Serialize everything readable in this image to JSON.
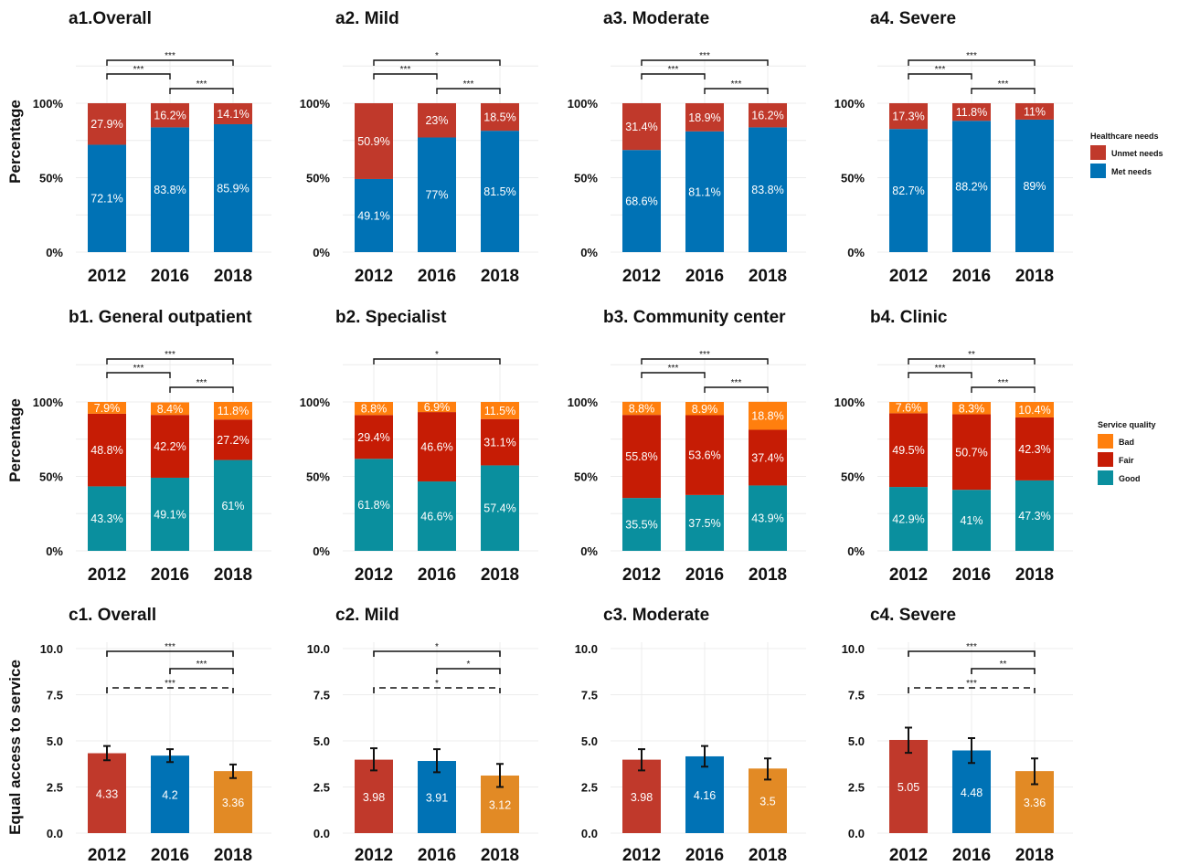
{
  "colors": {
    "unmet": "#c0392b",
    "met": "#0072b5",
    "bad": "#ff7f0e",
    "fair": "#c61c05",
    "good": "#0a8f9e",
    "y2012": "#c0392b",
    "y2016": "#0072b5",
    "y2018": "#e28a25"
  },
  "chart_data": [
    {
      "id": "a1",
      "type": "bar",
      "stacked": true,
      "title": "a1.Overall",
      "ylabel": "Percentage",
      "categories": [
        "2012",
        "2016",
        "2018"
      ],
      "yticks": [
        "0%",
        "50%",
        "100%"
      ],
      "series": [
        {
          "name": "Met needs",
          "values": [
            72.1,
            83.8,
            85.9
          ],
          "labels": [
            "72.1%",
            "83.8%",
            "85.9%"
          ]
        },
        {
          "name": "Unmet needs",
          "values": [
            27.9,
            16.2,
            14.1
          ],
          "labels": [
            "27.9%",
            "16.2%",
            "14.1%"
          ]
        }
      ],
      "significance": [
        {
          "from": 0,
          "to": 2,
          "label": "***",
          "level": 3,
          "dashed": false
        },
        {
          "from": 0,
          "to": 1,
          "label": "***",
          "level": 2,
          "dashed": false
        },
        {
          "from": 1,
          "to": 2,
          "label": "***",
          "level": 1,
          "dashed": false
        }
      ]
    },
    {
      "id": "a2",
      "type": "bar",
      "stacked": true,
      "title": "a2. Mild",
      "ylabel": "",
      "categories": [
        "2012",
        "2016",
        "2018"
      ],
      "yticks": [
        "0%",
        "50%",
        "100%"
      ],
      "series": [
        {
          "name": "Met needs",
          "values": [
            49.1,
            77,
            81.5
          ],
          "labels": [
            "49.1%",
            "77%",
            "81.5%"
          ]
        },
        {
          "name": "Unmet needs",
          "values": [
            50.9,
            23,
            18.5
          ],
          "labels": [
            "50.9%",
            "23%",
            "18.5%"
          ]
        }
      ],
      "significance": [
        {
          "from": 0,
          "to": 2,
          "label": "*",
          "level": 3,
          "dashed": false
        },
        {
          "from": 0,
          "to": 1,
          "label": "***",
          "level": 2,
          "dashed": false
        },
        {
          "from": 1,
          "to": 2,
          "label": "***",
          "level": 1,
          "dashed": false
        }
      ]
    },
    {
      "id": "a3",
      "type": "bar",
      "stacked": true,
      "title": "a3. Moderate",
      "ylabel": "",
      "categories": [
        "2012",
        "2016",
        "2018"
      ],
      "yticks": [
        "0%",
        "50%",
        "100%"
      ],
      "series": [
        {
          "name": "Met needs",
          "values": [
            68.6,
            81.1,
            83.8
          ],
          "labels": [
            "68.6%",
            "81.1%",
            "83.8%"
          ]
        },
        {
          "name": "Unmet needs",
          "values": [
            31.4,
            18.9,
            16.2
          ],
          "labels": [
            "31.4%",
            "18.9%",
            "16.2%"
          ]
        }
      ],
      "significance": [
        {
          "from": 0,
          "to": 2,
          "label": "***",
          "level": 3,
          "dashed": false
        },
        {
          "from": 0,
          "to": 1,
          "label": "***",
          "level": 2,
          "dashed": false
        },
        {
          "from": 1,
          "to": 2,
          "label": "***",
          "level": 1,
          "dashed": false
        }
      ]
    },
    {
      "id": "a4",
      "type": "bar",
      "stacked": true,
      "title": "a4. Severe",
      "ylabel": "",
      "categories": [
        "2012",
        "2016",
        "2018"
      ],
      "yticks": [
        "0%",
        "50%",
        "100%"
      ],
      "series": [
        {
          "name": "Met needs",
          "values": [
            82.7,
            88.2,
            89
          ],
          "labels": [
            "82.7%",
            "88.2%",
            "89%"
          ]
        },
        {
          "name": "Unmet needs",
          "values": [
            17.3,
            11.8,
            11
          ],
          "labels": [
            "17.3%",
            "11.8%",
            "11%"
          ]
        }
      ],
      "significance": [
        {
          "from": 0,
          "to": 2,
          "label": "***",
          "level": 3,
          "dashed": false
        },
        {
          "from": 0,
          "to": 1,
          "label": "***",
          "level": 2,
          "dashed": false
        },
        {
          "from": 1,
          "to": 2,
          "label": "***",
          "level": 1,
          "dashed": false
        }
      ]
    },
    {
      "id": "b1",
      "type": "bar",
      "stacked": true,
      "title": "b1. General outpatient",
      "ylabel": "Percentage",
      "categories": [
        "2012",
        "2016",
        "2018"
      ],
      "yticks": [
        "0%",
        "50%",
        "100%"
      ],
      "series": [
        {
          "name": "Good",
          "values": [
            43.3,
            49.1,
            61
          ],
          "labels": [
            "43.3%",
            "49.1%",
            "61%"
          ]
        },
        {
          "name": "Fair",
          "values": [
            48.8,
            42.2,
            27.2
          ],
          "labels": [
            "48.8%",
            "42.2%",
            "27.2%"
          ]
        },
        {
          "name": "Bad",
          "values": [
            7.9,
            8.4,
            11.8
          ],
          "labels": [
            "7.9%",
            "8.4%",
            "11.8%"
          ]
        }
      ],
      "significance": [
        {
          "from": 0,
          "to": 2,
          "label": "***",
          "level": 3,
          "dashed": false
        },
        {
          "from": 0,
          "to": 1,
          "label": "***",
          "level": 2,
          "dashed": false
        },
        {
          "from": 1,
          "to": 2,
          "label": "***",
          "level": 1,
          "dashed": false
        }
      ]
    },
    {
      "id": "b2",
      "type": "bar",
      "stacked": true,
      "title": "b2. Specialist",
      "ylabel": "",
      "categories": [
        "2012",
        "2016",
        "2018"
      ],
      "yticks": [
        "0%",
        "50%",
        "100%"
      ],
      "series": [
        {
          "name": "Good",
          "values": [
            61.8,
            46.6,
            57.4
          ],
          "labels": [
            "61.8%",
            "46.6%",
            "57.4%"
          ]
        },
        {
          "name": "Fair",
          "values": [
            29.4,
            46.6,
            31.1
          ],
          "labels": [
            "29.4%",
            "46.6%",
            "31.1%"
          ]
        },
        {
          "name": "Bad",
          "values": [
            8.8,
            6.9,
            11.5
          ],
          "labels": [
            "8.8%",
            "6.9%",
            "11.5%"
          ]
        }
      ],
      "significance": [
        {
          "from": 0,
          "to": 2,
          "label": "*",
          "level": 3,
          "dashed": false
        }
      ]
    },
    {
      "id": "b3",
      "type": "bar",
      "stacked": true,
      "title": "b3. Community center",
      "ylabel": "",
      "categories": [
        "2012",
        "2016",
        "2018"
      ],
      "yticks": [
        "0%",
        "50%",
        "100%"
      ],
      "series": [
        {
          "name": "Good",
          "values": [
            35.5,
            37.5,
            43.9
          ],
          "labels": [
            "35.5%",
            "37.5%",
            "43.9%"
          ]
        },
        {
          "name": "Fair",
          "values": [
            55.8,
            53.6,
            37.4
          ],
          "labels": [
            "55.8%",
            "53.6%",
            "37.4%"
          ]
        },
        {
          "name": "Bad",
          "values": [
            8.8,
            8.9,
            18.8
          ],
          "labels": [
            "8.8%",
            "8.9%",
            "18.8%"
          ]
        }
      ],
      "significance": [
        {
          "from": 0,
          "to": 2,
          "label": "***",
          "level": 3,
          "dashed": false
        },
        {
          "from": 0,
          "to": 1,
          "label": "***",
          "level": 2,
          "dashed": false
        },
        {
          "from": 1,
          "to": 2,
          "label": "***",
          "level": 1,
          "dashed": false
        }
      ]
    },
    {
      "id": "b4",
      "type": "bar",
      "stacked": true,
      "title": "b4. Clinic",
      "ylabel": "",
      "categories": [
        "2012",
        "2016",
        "2018"
      ],
      "yticks": [
        "0%",
        "50%",
        "100%"
      ],
      "series": [
        {
          "name": "Good",
          "values": [
            42.9,
            41,
            47.3
          ],
          "labels": [
            "42.9%",
            "41%",
            "47.3%"
          ]
        },
        {
          "name": "Fair",
          "values": [
            49.5,
            50.7,
            42.3
          ],
          "labels": [
            "49.5%",
            "50.7%",
            "42.3%"
          ]
        },
        {
          "name": "Bad",
          "values": [
            7.6,
            8.3,
            10.4
          ],
          "labels": [
            "7.6%",
            "8.3%",
            "10.4%"
          ]
        }
      ],
      "significance": [
        {
          "from": 0,
          "to": 2,
          "label": "**",
          "level": 3,
          "dashed": false
        },
        {
          "from": 0,
          "to": 1,
          "label": "***",
          "level": 2,
          "dashed": false
        },
        {
          "from": 1,
          "to": 2,
          "label": "***",
          "level": 1,
          "dashed": false
        }
      ]
    },
    {
      "id": "c1",
      "type": "bar",
      "stacked": false,
      "title": "c1. Overall",
      "ylabel": "Equal access to service",
      "categories": [
        "2012",
        "2016",
        "2018"
      ],
      "ylim": [
        0,
        10
      ],
      "yticks": [
        "0.0",
        "2.5",
        "5.0",
        "7.5",
        "10.0"
      ],
      "values": [
        4.33,
        4.2,
        3.36
      ],
      "labels": [
        "4.33",
        "4.2",
        "3.36"
      ],
      "errors": [
        [
          3.95,
          4.72
        ],
        [
          3.85,
          4.55
        ],
        [
          2.98,
          3.72
        ]
      ],
      "significance": [
        {
          "from": 0,
          "to": 2,
          "label": "***",
          "level": 3,
          "dashed": false
        },
        {
          "from": 1,
          "to": 2,
          "label": "***",
          "level": 2,
          "dashed": false
        },
        {
          "from": 0,
          "to": 2,
          "label": "***",
          "level": 1,
          "dashed": true
        }
      ]
    },
    {
      "id": "c2",
      "type": "bar",
      "stacked": false,
      "title": "c2. Mild",
      "ylabel": "",
      "categories": [
        "2012",
        "2016",
        "2018"
      ],
      "ylim": [
        0,
        10
      ],
      "yticks": [
        "0.0",
        "2.5",
        "5.0",
        "7.5",
        "10.0"
      ],
      "values": [
        3.98,
        3.91,
        3.12
      ],
      "labels": [
        "3.98",
        "3.91",
        "3.12"
      ],
      "errors": [
        [
          3.4,
          4.6
        ],
        [
          3.3,
          4.55
        ],
        [
          2.5,
          3.75
        ]
      ],
      "significance": [
        {
          "from": 0,
          "to": 2,
          "label": "*",
          "level": 3,
          "dashed": false
        },
        {
          "from": 1,
          "to": 2,
          "label": "*",
          "level": 2,
          "dashed": false
        },
        {
          "from": 0,
          "to": 2,
          "label": "*",
          "level": 1,
          "dashed": true
        }
      ]
    },
    {
      "id": "c3",
      "type": "bar",
      "stacked": false,
      "title": "c3. Moderate",
      "ylabel": "",
      "categories": [
        "2012",
        "2016",
        "2018"
      ],
      "ylim": [
        0,
        10
      ],
      "yticks": [
        "0.0",
        "2.5",
        "5.0",
        "7.5",
        "10.0"
      ],
      "values": [
        3.98,
        4.16,
        3.5
      ],
      "labels": [
        "3.98",
        "4.16",
        "3.5"
      ],
      "errors": [
        [
          3.4,
          4.55
        ],
        [
          3.6,
          4.72
        ],
        [
          2.9,
          4.05
        ]
      ],
      "significance": []
    },
    {
      "id": "c4",
      "type": "bar",
      "stacked": false,
      "title": "c4. Severe",
      "ylabel": "",
      "categories": [
        "2012",
        "2016",
        "2018"
      ],
      "ylim": [
        0,
        10
      ],
      "yticks": [
        "0.0",
        "2.5",
        "5.0",
        "7.5",
        "10.0"
      ],
      "values": [
        5.05,
        4.48,
        3.36
      ],
      "labels": [
        "5.05",
        "4.48",
        "3.36"
      ],
      "errors": [
        [
          4.35,
          5.72
        ],
        [
          3.8,
          5.15
        ],
        [
          2.65,
          4.05
        ]
      ],
      "significance": [
        {
          "from": 0,
          "to": 2,
          "label": "***",
          "level": 3,
          "dashed": false
        },
        {
          "from": 1,
          "to": 2,
          "label": "**",
          "level": 2,
          "dashed": false
        },
        {
          "from": 0,
          "to": 2,
          "label": "***",
          "level": 1,
          "dashed": true
        }
      ]
    }
  ],
  "legends": [
    {
      "id": "healthcare",
      "title": "Healthcare needs",
      "items": [
        {
          "label": "Unmet needs",
          "color": "#c0392b"
        },
        {
          "label": "Met needs",
          "color": "#0072b5"
        }
      ]
    },
    {
      "id": "quality",
      "title": "Service quality",
      "items": [
        {
          "label": "Bad",
          "color": "#ff7f0e"
        },
        {
          "label": "Fair",
          "color": "#c61c05"
        },
        {
          "label": "Good",
          "color": "#0a8f9e"
        }
      ]
    }
  ]
}
